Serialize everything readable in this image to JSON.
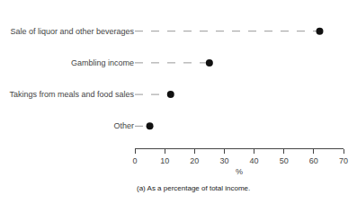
{
  "chart_data": {
    "type": "dot",
    "categories": [
      "Other",
      "Takings from meals and food sales",
      "Gambling income",
      "Sale of liquor and other beverages"
    ],
    "values": [
      5,
      12,
      25,
      62
    ],
    "xlabel": "%",
    "xlim": [
      0,
      70
    ],
    "xticks": [
      0,
      10,
      20,
      30,
      40,
      50,
      60,
      70
    ],
    "color": "#111111",
    "marker": "circle",
    "line_style": "dashed",
    "grid": false,
    "footnote": "(a) As a percentage of total income."
  }
}
